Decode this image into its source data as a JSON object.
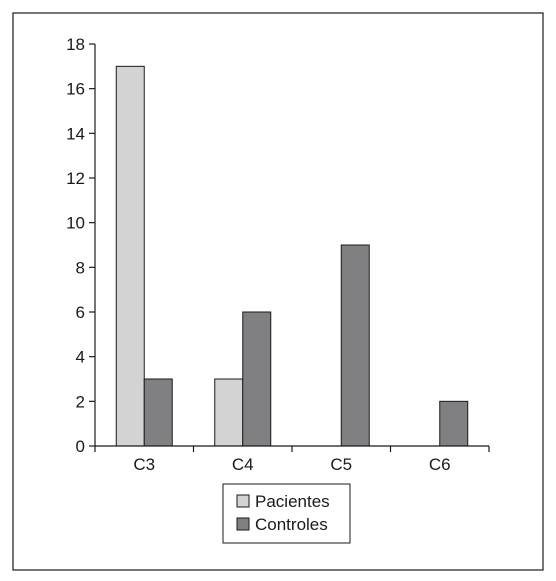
{
  "chart_data": {
    "type": "bar",
    "title": "",
    "xlabel": "",
    "ylabel": "",
    "categories": [
      "C3",
      "C4",
      "C5",
      "C6"
    ],
    "series": [
      {
        "name": "Pacientes",
        "values": [
          17,
          3,
          0,
          0
        ],
        "color": "#d3d3d3"
      },
      {
        "name": "Controles",
        "values": [
          3,
          6,
          9,
          2
        ],
        "color": "#808083"
      }
    ],
    "ylim": [
      0,
      18
    ],
    "yticks": [
      0,
      2,
      4,
      6,
      8,
      10,
      12,
      14,
      16,
      18
    ],
    "grid": false,
    "legend_position": "bottom-center"
  }
}
